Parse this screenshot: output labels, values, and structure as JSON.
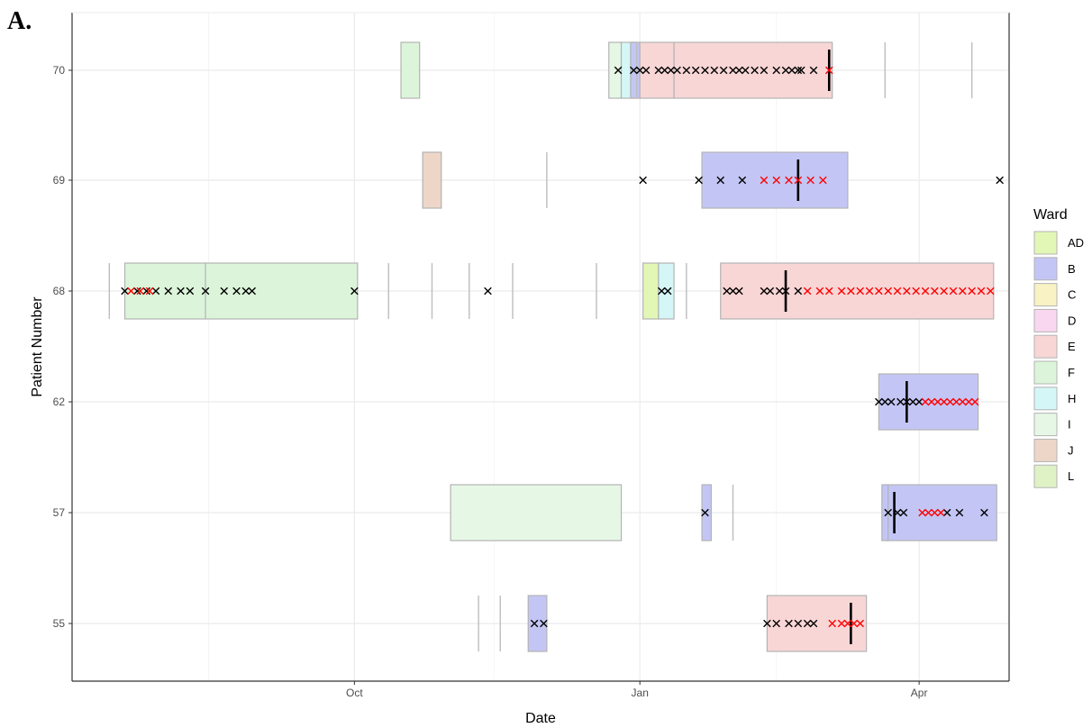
{
  "panel_label": "A.",
  "chart_data": {
    "type": "timeline",
    "xlabel": "Date",
    "ylabel": "Patient Number",
    "x_ticks": [
      {
        "label": "Oct",
        "date": "2018-10-01"
      },
      {
        "label": "Jan",
        "date": "2019-01-01"
      },
      {
        "label": "Apr",
        "date": "2019-04-01"
      }
    ],
    "xlim": [
      "2018-07-02",
      "2019-04-30"
    ],
    "patients": [
      "55",
      "57",
      "62",
      "68",
      "69",
      "70"
    ],
    "grid": true,
    "legend": {
      "title": "Ward",
      "position": "right",
      "entries": [
        {
          "ward": "AD",
          "color": "#e2f7b5"
        },
        {
          "ward": "B",
          "color": "#c3c6f5"
        },
        {
          "ward": "C",
          "color": "#f8f2c4"
        },
        {
          "ward": "D",
          "color": "#fad7f0"
        },
        {
          "ward": "E",
          "color": "#f8d6d6"
        },
        {
          "ward": "F",
          "color": "#dcf5da"
        },
        {
          "ward": "H",
          "color": "#d4f6f6"
        },
        {
          "ward": "I",
          "color": "#e6f7e6"
        },
        {
          "ward": "J",
          "color": "#edd6c8"
        },
        {
          "ward": "L",
          "color": "#dff2c6"
        }
      ]
    },
    "stays": [
      {
        "patient": "70",
        "ward": "F",
        "start": "2018-10-16",
        "end": "2018-10-22"
      },
      {
        "patient": "70",
        "ward": "I",
        "start": "2018-12-22",
        "end": "2018-12-26"
      },
      {
        "patient": "70",
        "ward": "H",
        "start": "2018-12-26",
        "end": "2018-12-31"
      },
      {
        "patient": "70",
        "ward": "B",
        "start": "2018-12-29",
        "end": "2019-01-01"
      },
      {
        "patient": "70",
        "ward": "E",
        "start": "2019-01-01",
        "end": "2019-01-12"
      },
      {
        "patient": "70",
        "ward": "E",
        "start": "2019-01-12",
        "end": "2019-03-04"
      },
      {
        "patient": "69",
        "ward": "J",
        "start": "2018-10-23",
        "end": "2018-10-29"
      },
      {
        "patient": "69",
        "ward": "B",
        "start": "2019-01-21",
        "end": "2019-03-09"
      },
      {
        "patient": "68",
        "ward": "F",
        "start": "2018-07-19",
        "end": "2018-08-14"
      },
      {
        "patient": "68",
        "ward": "F",
        "start": "2018-08-14",
        "end": "2018-10-02"
      },
      {
        "patient": "68",
        "ward": "AD",
        "start": "2019-01-02",
        "end": "2019-01-07"
      },
      {
        "patient": "68",
        "ward": "H",
        "start": "2019-01-07",
        "end": "2019-01-12"
      },
      {
        "patient": "68",
        "ward": "E",
        "start": "2019-01-27",
        "end": "2019-04-25"
      },
      {
        "patient": "62",
        "ward": "B",
        "start": "2019-03-19",
        "end": "2019-04-20"
      },
      {
        "patient": "57",
        "ward": "I",
        "start": "2018-11-01",
        "end": "2018-12-26"
      },
      {
        "patient": "57",
        "ward": "B",
        "start": "2019-01-21",
        "end": "2019-01-24"
      },
      {
        "patient": "57",
        "ward": "B",
        "start": "2019-03-20",
        "end": "2019-03-22"
      },
      {
        "patient": "57",
        "ward": "B",
        "start": "2019-03-22",
        "end": "2019-04-26"
      },
      {
        "patient": "55",
        "ward": "B",
        "start": "2018-11-26",
        "end": "2018-12-02"
      },
      {
        "patient": "55",
        "ward": "E",
        "start": "2019-02-11",
        "end": "2019-03-15"
      }
    ],
    "gaps": [
      {
        "patient": "70",
        "dates": [
          "2018-12-31",
          "2019-03-21",
          "2019-04-18"
        ]
      },
      {
        "patient": "69",
        "dates": [
          "2018-12-02"
        ]
      },
      {
        "patient": "68",
        "dates": [
          "2018-07-14",
          "2018-10-12",
          "2018-10-26",
          "2018-11-07",
          "2018-11-21",
          "2018-12-18",
          "2019-01-16"
        ]
      },
      {
        "patient": "57",
        "dates": [
          "2019-01-31"
        ]
      },
      {
        "patient": "55",
        "dates": [
          "2018-11-10",
          "2018-11-17"
        ]
      }
    ],
    "markers": [
      {
        "patient": "70",
        "date": "2019-03-03"
      },
      {
        "patient": "69",
        "date": "2019-02-21"
      },
      {
        "patient": "68",
        "date": "2019-02-17"
      },
      {
        "patient": "62",
        "date": "2019-03-28"
      },
      {
        "patient": "57",
        "date": "2019-03-24"
      },
      {
        "patient": "55",
        "date": "2019-03-10"
      }
    ],
    "samples": {
      "70": {
        "black": [
          "2018-12-25",
          "2018-12-30",
          "2019-01-01",
          "2019-01-03",
          "2019-01-07",
          "2019-01-09",
          "2019-01-11",
          "2019-01-13",
          "2019-01-16",
          "2019-01-19",
          "2019-01-22",
          "2019-01-25",
          "2019-01-28",
          "2019-01-31",
          "2019-02-02",
          "2019-02-04",
          "2019-02-07",
          "2019-02-10",
          "2019-02-14",
          "2019-02-17",
          "2019-02-19",
          "2019-02-21",
          "2019-02-22",
          "2019-02-26"
        ],
        "red": [
          "2019-03-03"
        ]
      },
      "69": {
        "black": [
          "2019-01-02",
          "2019-01-20",
          "2019-01-27",
          "2019-02-03",
          "2019-04-27"
        ],
        "red": [
          "2019-02-10",
          "2019-02-14",
          "2019-02-18",
          "2019-02-21",
          "2019-02-25",
          "2019-03-01"
        ]
      },
      "68": {
        "black": [
          "2018-07-19",
          "2018-07-23",
          "2018-07-26",
          "2018-07-29",
          "2018-08-02",
          "2018-08-06",
          "2018-08-09",
          "2018-08-14",
          "2018-08-20",
          "2018-08-24",
          "2018-08-27",
          "2018-08-29",
          "2018-10-01",
          "2018-11-13",
          "2019-01-08",
          "2019-01-10",
          "2019-01-29",
          "2019-01-31",
          "2019-02-02",
          "2019-02-10",
          "2019-02-12",
          "2019-02-15",
          "2019-02-17",
          "2019-02-21"
        ],
        "red": [
          "2018-07-21",
          "2018-07-24",
          "2018-07-27",
          "2019-02-24",
          "2019-02-28",
          "2019-03-03",
          "2019-03-07",
          "2019-03-10",
          "2019-03-13",
          "2019-03-16",
          "2019-03-19",
          "2019-03-22",
          "2019-03-25",
          "2019-03-28",
          "2019-03-31",
          "2019-04-03",
          "2019-04-06",
          "2019-04-09",
          "2019-04-12",
          "2019-04-15",
          "2019-04-18",
          "2019-04-21",
          "2019-04-24"
        ]
      },
      "62": {
        "black": [
          "2019-03-19",
          "2019-03-21",
          "2019-03-23",
          "2019-03-26",
          "2019-03-28",
          "2019-03-30",
          "2019-04-01"
        ],
        "red": [
          "2019-04-03",
          "2019-04-05",
          "2019-04-07",
          "2019-04-09",
          "2019-04-11",
          "2019-04-13",
          "2019-04-15",
          "2019-04-17",
          "2019-04-19"
        ]
      },
      "57": {
        "black": [
          "2019-01-22",
          "2019-03-22",
          "2019-03-25",
          "2019-03-27",
          "2019-04-10",
          "2019-04-14",
          "2019-04-22"
        ],
        "red": [
          "2019-04-02",
          "2019-04-04",
          "2019-04-06",
          "2019-04-08"
        ]
      },
      "55": {
        "black": [
          "2018-11-28",
          "2018-12-01",
          "2019-02-11",
          "2019-02-14",
          "2019-02-18",
          "2019-02-21",
          "2019-02-24",
          "2019-02-26"
        ],
        "red": [
          "2019-03-04",
          "2019-03-07",
          "2019-03-09",
          "2019-03-11",
          "2019-03-13"
        ]
      }
    }
  }
}
